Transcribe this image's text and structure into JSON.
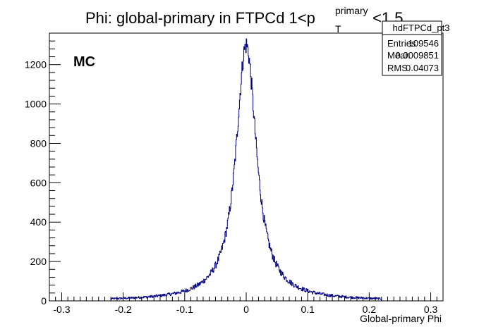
{
  "chart_data": {
    "type": "histogram",
    "title": {
      "prefix": "Phi: global-primary in FTPCd 1<p",
      "superscript": "primary",
      "subscript": "T",
      "suffix": "<1.5"
    },
    "xlabel": "Global-primary Phi",
    "ylabel": "",
    "xlim": [
      -0.32,
      0.32
    ],
    "ylim": [
      0,
      1360
    ],
    "x_ticks": [
      -0.3,
      -0.2,
      -0.1,
      0,
      0.1,
      0.2,
      0.3
    ],
    "x_tick_labels": [
      "-0.3",
      "-0.2",
      "-0.1",
      "0",
      "0.1",
      "0.2",
      "0.3"
    ],
    "y_ticks": [
      0,
      200,
      400,
      600,
      800,
      1000,
      1200
    ],
    "y_tick_labels": [
      "0",
      "200",
      "400",
      "600",
      "800",
      "1000",
      "1200"
    ],
    "annotation": "MC",
    "line_color": "#000080",
    "shape": {
      "peak_x": 0.0,
      "peak_y": 1300,
      "half_width": 0.022,
      "support": [
        -0.22,
        0.22
      ]
    },
    "stats_box": {
      "name": "hdFTPCd_pt3",
      "rows": [
        {
          "label": "Entries",
          "value": "109546"
        },
        {
          "label": "Mean",
          "value": "0.0009851"
        },
        {
          "label": "RMS",
          "value": "0.04073"
        }
      ]
    }
  }
}
